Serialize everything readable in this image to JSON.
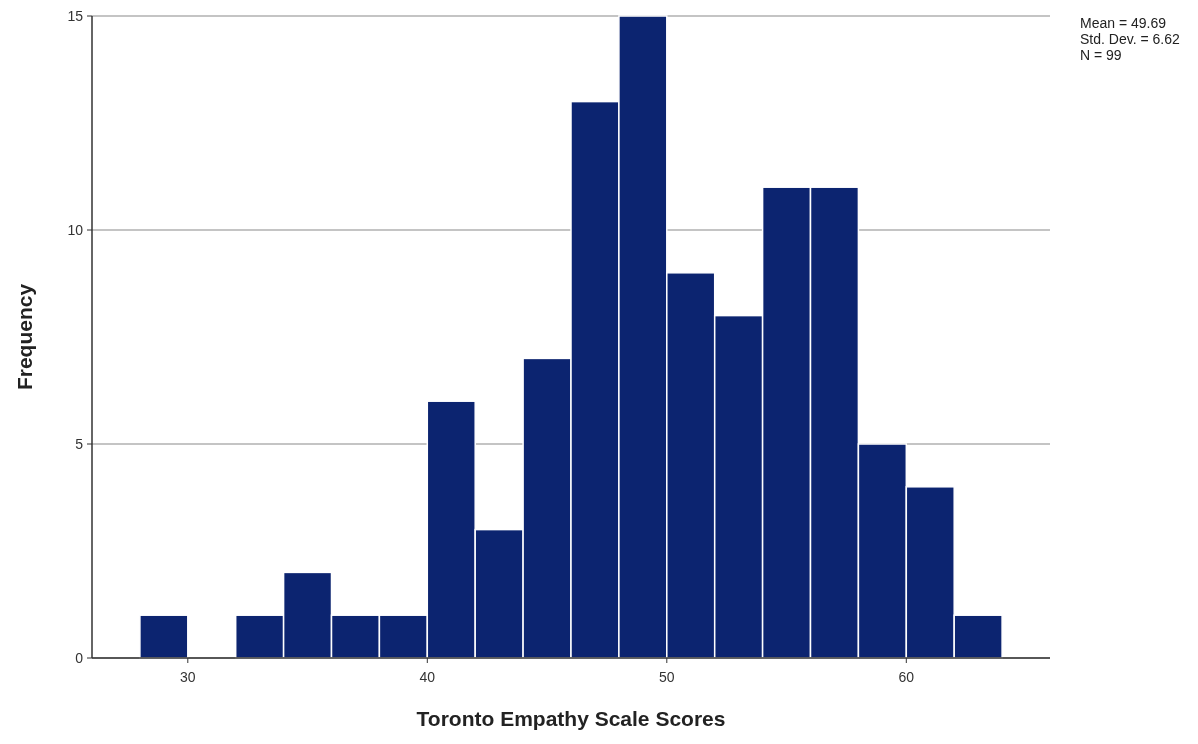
{
  "chart_data": {
    "type": "histogram",
    "xlabel": "Toronto Empathy Scale Scores",
    "ylabel": "Frequency",
    "bins": [
      28,
      30,
      32,
      34,
      36,
      38,
      40,
      42,
      44,
      46,
      48,
      50,
      52,
      54,
      56,
      58,
      60,
      62,
      64
    ],
    "values": [
      1,
      0,
      1,
      2,
      1,
      1,
      6,
      3,
      7,
      13,
      15,
      9,
      8,
      11,
      11,
      5,
      4,
      1
    ],
    "color": "#0c2470",
    "xlim": [
      26,
      66
    ],
    "xticks": [
      30,
      40,
      50,
      60
    ],
    "ylim": [
      0,
      15
    ],
    "yticks": [
      0,
      5,
      10,
      15
    ],
    "grid": "y",
    "annotations": [
      "Mean = 49.69",
      "Std. Dev. = 6.62",
      "N = 99"
    ]
  }
}
